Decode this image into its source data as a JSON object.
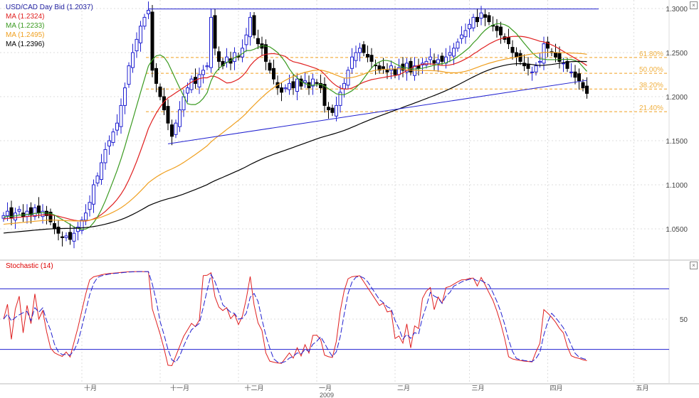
{
  "legend": {
    "title": "USD/CAD Day Bid (1.2037)",
    "ma": [
      {
        "label": "MA (1.2324)",
        "color": "#e02020",
        "period": 20
      },
      {
        "label": "MA (1.2233)",
        "color": "#3a9a20",
        "period": 10
      },
      {
        "label": "MA (1.2495)",
        "color": "#f0a020",
        "period": 50
      },
      {
        "label": "MA (1.2396)",
        "color": "#000000",
        "period": 100
      }
    ]
  },
  "stochastic": {
    "label": "Stochastic (14)",
    "level_label": "50",
    "k_color": "#e02020",
    "d_color": "#2020d0"
  },
  "close_icon": "×",
  "chart_data": {
    "type": "candlestick",
    "title": "USD/CAD Day Bid",
    "ylim": [
      1.02,
      1.305
    ],
    "yticks": [
      "1.3000",
      "1.2500",
      "1.2000",
      "1.1500",
      "1.1000",
      "1.0500"
    ],
    "ytick_values": [
      1.3,
      1.25,
      1.2,
      1.15,
      1.1,
      1.05
    ],
    "xticks": [
      {
        "label": "十月",
        "day": 22
      },
      {
        "label": "十一月",
        "day": 44
      },
      {
        "label": "十二月",
        "day": 63
      },
      {
        "label": "一月",
        "day": 82
      },
      {
        "label": "二月",
        "day": 102
      },
      {
        "label": "三月",
        "day": 121
      },
      {
        "label": "四月",
        "day": 141
      },
      {
        "label": "五月",
        "day": 163
      }
    ],
    "grid_days": [
      20,
      40,
      60,
      80,
      100,
      119,
      139,
      161
    ],
    "year_label": "2009",
    "fib": [
      {
        "label": "61.80%",
        "value": 1.2445
      },
      {
        "label": "50.00%",
        "value": 1.2265
      },
      {
        "label": "38.20%",
        "value": 1.2087
      },
      {
        "label": "21.40%",
        "value": 1.183
      }
    ],
    "trendlines": [
      {
        "from": [
          37,
          1.2995
        ],
        "to": [
          152,
          1.2995
        ]
      },
      {
        "from": [
          42,
          1.1465
        ],
        "to": [
          149,
          1.2185
        ]
      }
    ],
    "stoch_levels": [
      80,
      50,
      20
    ],
    "closes": [
      1.065,
      1.07,
      1.062,
      1.068,
      1.072,
      1.064,
      1.07,
      1.066,
      1.074,
      1.068,
      1.07,
      1.065,
      1.058,
      1.05,
      1.045,
      1.04,
      1.042,
      1.038,
      1.045,
      1.052,
      1.06,
      1.068,
      1.08,
      1.1,
      1.11,
      1.125,
      1.14,
      1.15,
      1.16,
      1.17,
      1.19,
      1.21,
      1.235,
      1.25,
      1.265,
      1.28,
      1.29,
      1.298,
      1.23,
      1.215,
      1.2,
      1.185,
      1.17,
      1.155,
      1.17,
      1.185,
      1.2,
      1.21,
      1.22,
      1.215,
      1.225,
      1.23,
      1.235,
      1.29,
      1.255,
      1.24,
      1.235,
      1.245,
      1.238,
      1.25,
      1.245,
      1.255,
      1.27,
      1.29,
      1.27,
      1.26,
      1.255,
      1.24,
      1.23,
      1.22,
      1.21,
      1.205,
      1.21,
      1.215,
      1.21,
      1.22,
      1.212,
      1.218,
      1.21,
      1.22,
      1.215,
      1.21,
      1.19,
      1.185,
      1.182,
      1.19,
      1.205,
      1.215,
      1.23,
      1.245,
      1.25,
      1.255,
      1.25,
      1.245,
      1.24,
      1.235,
      1.23,
      1.232,
      1.228,
      1.235,
      1.225,
      1.233,
      1.23,
      1.238,
      1.228,
      1.235,
      1.232,
      1.238,
      1.24,
      1.245,
      1.238,
      1.242,
      1.24,
      1.245,
      1.25,
      1.255,
      1.262,
      1.27,
      1.275,
      1.282,
      1.29,
      1.285,
      1.295,
      1.29,
      1.285,
      1.28,
      1.275,
      1.27,
      1.265,
      1.26,
      1.25,
      1.245,
      1.24,
      1.235,
      1.232,
      1.228,
      1.235,
      1.24,
      1.26,
      1.255,
      1.25,
      1.245,
      1.24,
      1.238,
      1.232,
      1.228,
      1.222,
      1.218,
      1.21,
      1.2037
    ]
  }
}
